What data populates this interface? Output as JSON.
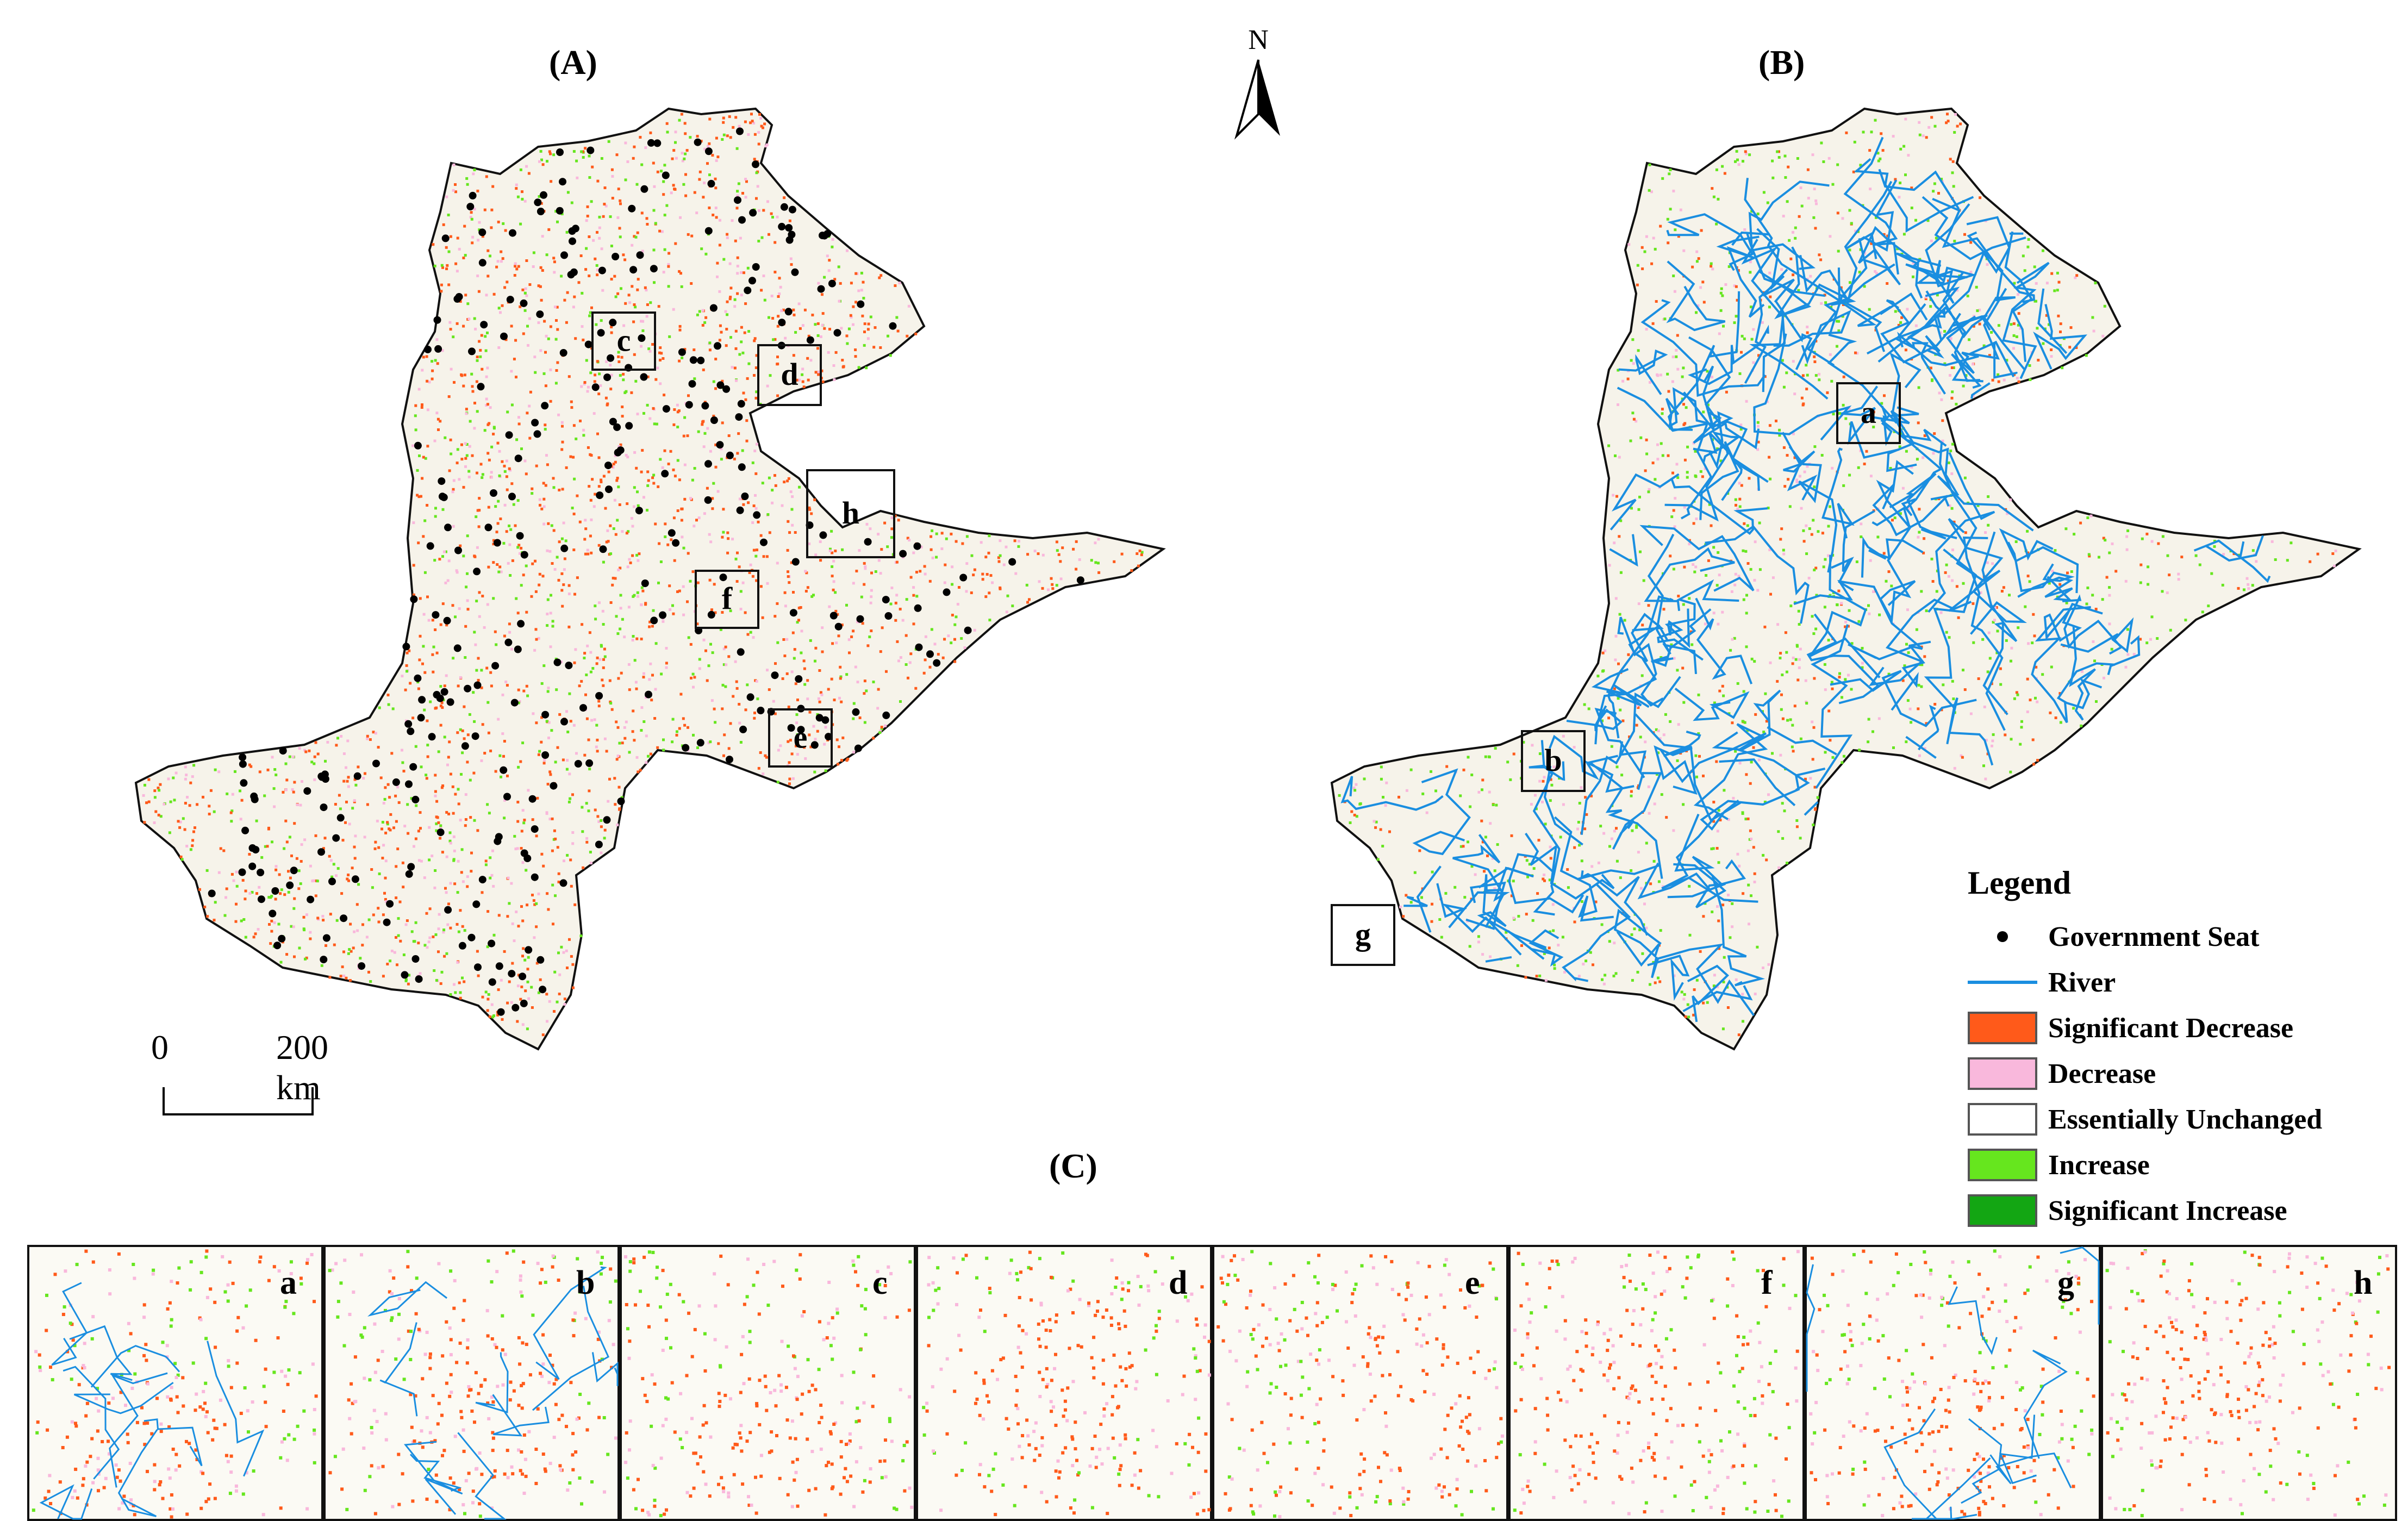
{
  "panels": {
    "a_title": "(A)",
    "b_title": "(B)",
    "c_title": "(C)"
  },
  "north_label": "N",
  "scale_bar": {
    "start": "0",
    "end": "200 km"
  },
  "map_a_boxes": [
    "c",
    "d",
    "h",
    "f",
    "e"
  ],
  "map_b_boxes": [
    "a",
    "b",
    "g"
  ],
  "insets": [
    "a",
    "b",
    "c",
    "d",
    "e",
    "f",
    "g",
    "h"
  ],
  "legend": {
    "title": "Legend",
    "items": [
      {
        "label": "Government Seat",
        "symbol": "dot",
        "color": "#000000"
      },
      {
        "label": "River",
        "symbol": "line",
        "color": "#1a8ee0"
      },
      {
        "label": "Significant Decrease",
        "symbol": "fill",
        "color": "#ff5a1a"
      },
      {
        "label": "Decrease",
        "symbol": "fill",
        "color": "#f9b8dc"
      },
      {
        "label": "Essentially Unchanged",
        "symbol": "box",
        "color": "#ffffff"
      },
      {
        "label": "Increase",
        "symbol": "fill",
        "color": "#66e61e"
      },
      {
        "label": "Significant Increase",
        "symbol": "fill",
        "color": "#13a613"
      }
    ]
  },
  "colors": {
    "region_fill": "#f6f3ea",
    "region_outline": "#111111",
    "river": "#1a8ee0",
    "sig_decrease": "#ff5a1a",
    "decrease": "#f9b8dc",
    "increase": "#66e61e",
    "sig_increase": "#13a613"
  }
}
